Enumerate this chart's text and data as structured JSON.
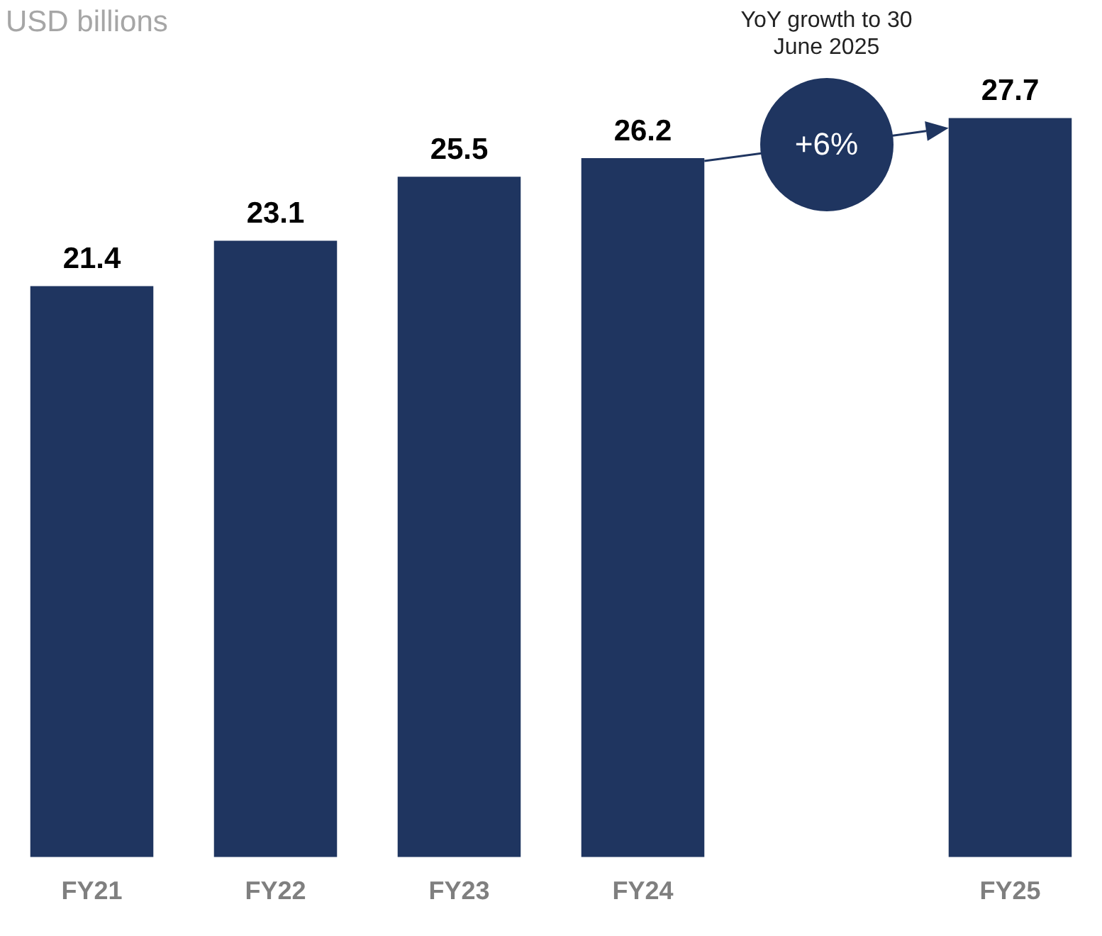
{
  "chart_data": {
    "type": "bar",
    "title": "USD billions",
    "categories": [
      "FY21",
      "FY22",
      "FY23",
      "FY24",
      null,
      "FY25"
    ],
    "values": [
      21.4,
      23.1,
      25.5,
      26.2,
      null,
      27.7
    ],
    "color": "#1f3560",
    "data_labels": true,
    "grid": false,
    "legend": false,
    "tick_labels": "x",
    "annotations": [
      "YoY growth to 30 June 2025",
      "+6%"
    ]
  }
}
